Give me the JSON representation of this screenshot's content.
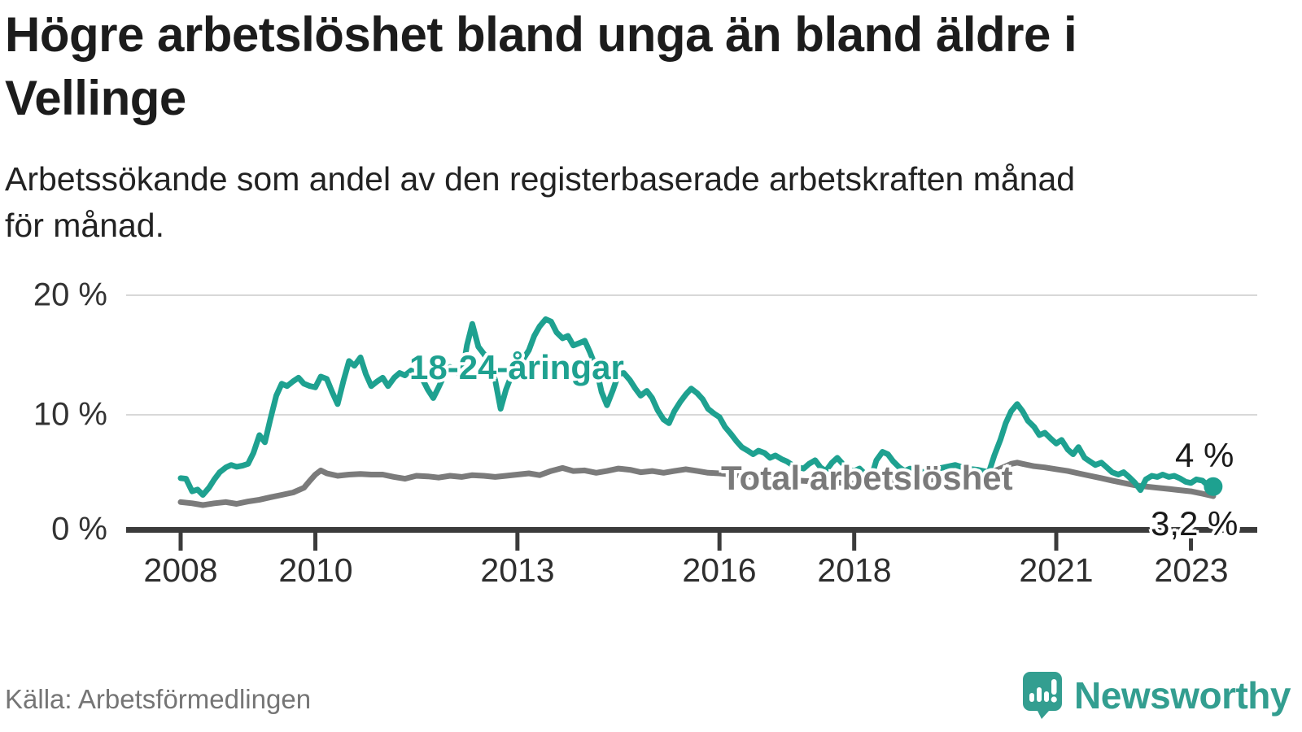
{
  "header": {
    "title_lines": [
      "Högre arbetslöshet bland unga än bland äldre i",
      "Vellinge"
    ],
    "subtitle_lines": [
      "Arbetssökande som andel av den registerbaserade arbetskraften månad",
      "för månad."
    ]
  },
  "chart": {
    "y_tick_labels": [
      "20 %",
      "10 %",
      "0 %"
    ],
    "x_tick_labels": [
      "2008",
      "2010",
      "2013",
      "2016",
      "2018",
      "2021",
      "2023"
    ],
    "series_labels": {
      "young": "18-24-åringar",
      "total": "Total arbetslöshet"
    },
    "end_labels": {
      "young": "4 %",
      "total": "3,2 %"
    },
    "colors": {
      "young": "#1ea190",
      "total": "#7b7b7b",
      "grid": "#d8d8d8",
      "axis": "#3b3b3b"
    }
  },
  "chart_data": {
    "type": "line",
    "title": "Högre arbetslöshet bland unga än bland äldre i Vellinge",
    "subtitle": "Arbetssökande som andel av den registerbaserade arbetskraften månad för månad.",
    "xlabel": "",
    "ylabel": "%",
    "x_axis": {
      "ticks": [
        2008,
        2010,
        2013,
        2016,
        2018,
        2021,
        2023
      ],
      "range": [
        2007.9,
        2023.9
      ]
    },
    "y_axis": {
      "ticks_percent": [
        0,
        10,
        20
      ],
      "range": [
        0,
        21.5
      ],
      "unit": "%"
    },
    "grid": "horizontal-light",
    "legend": "inline-labels",
    "series": [
      {
        "name": "18-24-åringar",
        "color": "#1ea190",
        "end_label": "4 %",
        "end_dot": true,
        "points": [
          [
            2008.0,
            4.7
          ],
          [
            2008.08,
            4.65
          ],
          [
            2008.17,
            3.6
          ],
          [
            2008.25,
            3.75
          ],
          [
            2008.33,
            3.3
          ],
          [
            2008.42,
            3.9
          ],
          [
            2008.5,
            4.6
          ],
          [
            2008.58,
            5.2
          ],
          [
            2008.67,
            5.6
          ],
          [
            2008.75,
            5.8
          ],
          [
            2008.83,
            5.65
          ],
          [
            2008.92,
            5.75
          ],
          [
            2009.0,
            5.9
          ],
          [
            2009.08,
            6.8
          ],
          [
            2009.17,
            8.3
          ],
          [
            2009.25,
            7.7
          ],
          [
            2009.33,
            9.6
          ],
          [
            2009.42,
            11.6
          ],
          [
            2009.5,
            12.6
          ],
          [
            2009.58,
            12.4
          ],
          [
            2009.67,
            12.8
          ],
          [
            2009.75,
            13.1
          ],
          [
            2009.83,
            12.6
          ],
          [
            2009.92,
            12.4
          ],
          [
            2010.0,
            12.3
          ],
          [
            2010.08,
            13.2
          ],
          [
            2010.17,
            13.0
          ],
          [
            2010.25,
            11.9
          ],
          [
            2010.33,
            10.9
          ],
          [
            2010.42,
            12.9
          ],
          [
            2010.5,
            14.5
          ],
          [
            2010.58,
            14.1
          ],
          [
            2010.67,
            14.8
          ],
          [
            2010.75,
            13.4
          ],
          [
            2010.83,
            12.4
          ],
          [
            2010.92,
            12.8
          ],
          [
            2011.0,
            13.1
          ],
          [
            2011.08,
            12.4
          ],
          [
            2011.17,
            13.1
          ],
          [
            2011.25,
            13.5
          ],
          [
            2011.33,
            13.3
          ],
          [
            2011.42,
            13.7
          ],
          [
            2011.5,
            13.5
          ],
          [
            2011.58,
            13.1
          ],
          [
            2011.67,
            12.1
          ],
          [
            2011.75,
            11.4
          ],
          [
            2011.83,
            12.3
          ],
          [
            2011.92,
            13.4
          ],
          [
            2012.0,
            14.0
          ],
          [
            2012.08,
            13.8
          ],
          [
            2012.17,
            13.1
          ],
          [
            2012.25,
            15.8
          ],
          [
            2012.33,
            17.6
          ],
          [
            2012.42,
            15.7
          ],
          [
            2012.5,
            15.1
          ],
          [
            2012.58,
            14.4
          ],
          [
            2012.67,
            12.9
          ],
          [
            2012.75,
            10.5
          ],
          [
            2012.83,
            12.1
          ],
          [
            2012.92,
            13.4
          ],
          [
            2013.0,
            13.2
          ],
          [
            2013.08,
            14.6
          ],
          [
            2013.17,
            15.4
          ],
          [
            2013.25,
            16.6
          ],
          [
            2013.33,
            17.4
          ],
          [
            2013.42,
            18.0
          ],
          [
            2013.5,
            17.8
          ],
          [
            2013.58,
            16.9
          ],
          [
            2013.67,
            16.4
          ],
          [
            2013.75,
            16.6
          ],
          [
            2013.83,
            15.8
          ],
          [
            2013.92,
            16.0
          ],
          [
            2014.0,
            16.2
          ],
          [
            2014.08,
            15.2
          ],
          [
            2014.17,
            13.9
          ],
          [
            2014.25,
            11.9
          ],
          [
            2014.33,
            10.8
          ],
          [
            2014.42,
            12.1
          ],
          [
            2014.5,
            13.4
          ],
          [
            2014.58,
            13.5
          ],
          [
            2014.67,
            12.9
          ],
          [
            2014.75,
            12.2
          ],
          [
            2014.83,
            11.6
          ],
          [
            2014.92,
            12.0
          ],
          [
            2015.0,
            11.4
          ],
          [
            2015.08,
            10.4
          ],
          [
            2015.17,
            9.6
          ],
          [
            2015.25,
            9.3
          ],
          [
            2015.33,
            10.3
          ],
          [
            2015.42,
            11.1
          ],
          [
            2015.5,
            11.7
          ],
          [
            2015.58,
            12.2
          ],
          [
            2015.67,
            11.8
          ],
          [
            2015.75,
            11.3
          ],
          [
            2015.83,
            10.5
          ],
          [
            2015.92,
            10.1
          ],
          [
            2016.0,
            9.8
          ],
          [
            2016.08,
            9.0
          ],
          [
            2016.17,
            8.4
          ],
          [
            2016.25,
            7.8
          ],
          [
            2016.33,
            7.3
          ],
          [
            2016.42,
            7.0
          ],
          [
            2016.5,
            6.7
          ],
          [
            2016.58,
            7.0
          ],
          [
            2016.67,
            6.8
          ],
          [
            2016.75,
            6.4
          ],
          [
            2016.83,
            6.6
          ],
          [
            2016.92,
            6.3
          ],
          [
            2017.0,
            6.1
          ],
          [
            2017.08,
            5.8
          ],
          [
            2017.17,
            5.6
          ],
          [
            2017.25,
            5.5
          ],
          [
            2017.33,
            5.9
          ],
          [
            2017.42,
            6.2
          ],
          [
            2017.5,
            5.6
          ],
          [
            2017.58,
            5.3
          ],
          [
            2017.67,
            6.0
          ],
          [
            2017.75,
            6.4
          ],
          [
            2017.83,
            5.9
          ],
          [
            2017.92,
            5.4
          ],
          [
            2018.0,
            5.3
          ],
          [
            2018.08,
            5.5
          ],
          [
            2018.17,
            5.0
          ],
          [
            2018.25,
            4.7
          ],
          [
            2018.33,
            6.2
          ],
          [
            2018.42,
            6.9
          ],
          [
            2018.5,
            6.7
          ],
          [
            2018.58,
            6.1
          ],
          [
            2018.67,
            5.6
          ],
          [
            2018.75,
            5.3
          ],
          [
            2018.83,
            5.5
          ],
          [
            2018.92,
            5.3
          ],
          [
            2019.0,
            5.2
          ],
          [
            2019.17,
            5.4
          ],
          [
            2019.33,
            5.6
          ],
          [
            2019.5,
            5.8
          ],
          [
            2019.67,
            5.5
          ],
          [
            2019.83,
            5.4
          ],
          [
            2020.0,
            5.2
          ],
          [
            2020.08,
            6.6
          ],
          [
            2020.17,
            7.9
          ],
          [
            2020.25,
            9.3
          ],
          [
            2020.33,
            10.3
          ],
          [
            2020.42,
            10.9
          ],
          [
            2020.5,
            10.3
          ],
          [
            2020.58,
            9.5
          ],
          [
            2020.67,
            9.0
          ],
          [
            2020.75,
            8.3
          ],
          [
            2020.83,
            8.5
          ],
          [
            2020.92,
            8.0
          ],
          [
            2021.0,
            7.6
          ],
          [
            2021.08,
            7.9
          ],
          [
            2021.17,
            7.1
          ],
          [
            2021.25,
            6.7
          ],
          [
            2021.33,
            7.3
          ],
          [
            2021.42,
            6.4
          ],
          [
            2021.5,
            6.1
          ],
          [
            2021.58,
            5.8
          ],
          [
            2021.67,
            6.0
          ],
          [
            2021.75,
            5.6
          ],
          [
            2021.83,
            5.2
          ],
          [
            2021.92,
            5.0
          ],
          [
            2022.0,
            5.2
          ],
          [
            2022.08,
            4.8
          ],
          [
            2022.17,
            4.3
          ],
          [
            2022.25,
            3.7
          ],
          [
            2022.33,
            4.6
          ],
          [
            2022.42,
            4.9
          ],
          [
            2022.5,
            4.8
          ],
          [
            2022.58,
            5.0
          ],
          [
            2022.67,
            4.8
          ],
          [
            2022.75,
            4.9
          ],
          [
            2022.83,
            4.7
          ],
          [
            2022.92,
            4.4
          ],
          [
            2023.0,
            4.3
          ],
          [
            2023.08,
            4.6
          ],
          [
            2023.17,
            4.5
          ],
          [
            2023.25,
            4.1
          ],
          [
            2023.33,
            4.0
          ]
        ]
      },
      {
        "name": "Total arbetslöshet",
        "color": "#7b7b7b",
        "end_label": "3,2 %",
        "end_dot": false,
        "points": [
          [
            2008.0,
            2.7
          ],
          [
            2008.17,
            2.6
          ],
          [
            2008.33,
            2.45
          ],
          [
            2008.5,
            2.6
          ],
          [
            2008.67,
            2.7
          ],
          [
            2008.83,
            2.55
          ],
          [
            2009.0,
            2.75
          ],
          [
            2009.17,
            2.9
          ],
          [
            2009.33,
            3.1
          ],
          [
            2009.5,
            3.3
          ],
          [
            2009.67,
            3.5
          ],
          [
            2009.83,
            3.9
          ],
          [
            2009.92,
            4.5
          ],
          [
            2010.0,
            5.0
          ],
          [
            2010.08,
            5.35
          ],
          [
            2010.17,
            5.1
          ],
          [
            2010.33,
            4.9
          ],
          [
            2010.5,
            5.0
          ],
          [
            2010.67,
            5.05
          ],
          [
            2010.83,
            5.0
          ],
          [
            2011.0,
            5.0
          ],
          [
            2011.17,
            4.8
          ],
          [
            2011.33,
            4.65
          ],
          [
            2011.5,
            4.9
          ],
          [
            2011.67,
            4.85
          ],
          [
            2011.83,
            4.75
          ],
          [
            2012.0,
            4.9
          ],
          [
            2012.17,
            4.8
          ],
          [
            2012.33,
            4.95
          ],
          [
            2012.5,
            4.9
          ],
          [
            2012.67,
            4.8
          ],
          [
            2012.83,
            4.9
          ],
          [
            2013.0,
            5.0
          ],
          [
            2013.17,
            5.1
          ],
          [
            2013.33,
            4.95
          ],
          [
            2013.5,
            5.3
          ],
          [
            2013.67,
            5.55
          ],
          [
            2013.83,
            5.3
          ],
          [
            2014.0,
            5.35
          ],
          [
            2014.17,
            5.15
          ],
          [
            2014.33,
            5.3
          ],
          [
            2014.5,
            5.5
          ],
          [
            2014.67,
            5.4
          ],
          [
            2014.83,
            5.2
          ],
          [
            2015.0,
            5.3
          ],
          [
            2015.17,
            5.15
          ],
          [
            2015.33,
            5.3
          ],
          [
            2015.5,
            5.45
          ],
          [
            2015.67,
            5.3
          ],
          [
            2015.83,
            5.15
          ],
          [
            2016.0,
            5.1
          ],
          [
            2016.17,
            5.0
          ],
          [
            2016.33,
            4.9
          ],
          [
            2016.5,
            4.8
          ],
          [
            2016.67,
            4.75
          ],
          [
            2016.83,
            4.6
          ],
          [
            2017.0,
            4.6
          ],
          [
            2017.17,
            4.5
          ],
          [
            2017.33,
            4.45
          ],
          [
            2017.5,
            4.35
          ],
          [
            2017.67,
            4.4
          ],
          [
            2017.83,
            4.3
          ],
          [
            2018.0,
            4.25
          ],
          [
            2018.17,
            4.3
          ],
          [
            2018.33,
            4.4
          ],
          [
            2018.5,
            4.35
          ],
          [
            2018.67,
            4.4
          ],
          [
            2018.83,
            4.5
          ],
          [
            2019.0,
            4.5
          ],
          [
            2019.17,
            4.6
          ],
          [
            2019.33,
            4.7
          ],
          [
            2019.5,
            4.8
          ],
          [
            2019.67,
            4.9
          ],
          [
            2019.83,
            5.0
          ],
          [
            2020.0,
            5.1
          ],
          [
            2020.17,
            5.5
          ],
          [
            2020.33,
            5.9
          ],
          [
            2020.42,
            6.0
          ],
          [
            2020.5,
            5.9
          ],
          [
            2020.67,
            5.7
          ],
          [
            2020.83,
            5.6
          ],
          [
            2021.0,
            5.45
          ],
          [
            2021.17,
            5.3
          ],
          [
            2021.33,
            5.1
          ],
          [
            2021.5,
            4.9
          ],
          [
            2021.67,
            4.7
          ],
          [
            2021.83,
            4.5
          ],
          [
            2022.0,
            4.3
          ],
          [
            2022.17,
            4.1
          ],
          [
            2022.33,
            4.0
          ],
          [
            2022.5,
            3.9
          ],
          [
            2022.67,
            3.8
          ],
          [
            2022.83,
            3.7
          ],
          [
            2023.0,
            3.6
          ],
          [
            2023.17,
            3.4
          ],
          [
            2023.33,
            3.2
          ]
        ]
      }
    ],
    "annotations": [
      {
        "text": "18-24-åringar",
        "color": "#1ea190"
      },
      {
        "text": "Total arbetslöshet",
        "color": "#7a7a7a"
      },
      {
        "text": "4 %",
        "series": "18-24-åringar",
        "position": "end"
      },
      {
        "text": "3,2 %",
        "series": "Total arbetslöshet",
        "position": "end"
      }
    ]
  },
  "footer": {
    "source": "Källa: Arbetsförmedlingen",
    "brand": "Newsworthy"
  }
}
